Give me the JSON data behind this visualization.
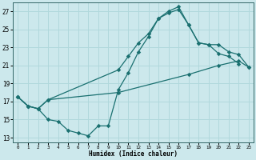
{
  "xlabel": "Humidex (Indice chaleur)",
  "bg_color": "#cce8ec",
  "line_color": "#1a7070",
  "grid_color": "#b0d8dc",
  "xlim": [
    -0.5,
    23.5
  ],
  "ylim": [
    12.5,
    28.0
  ],
  "yticks": [
    13,
    15,
    17,
    19,
    21,
    23,
    25,
    27
  ],
  "xticks": [
    0,
    1,
    2,
    3,
    4,
    5,
    6,
    7,
    8,
    9,
    10,
    11,
    12,
    13,
    14,
    15,
    16,
    17,
    18,
    19,
    20,
    21,
    22,
    23
  ],
  "lineA_x": [
    0,
    1,
    2,
    3,
    4,
    5,
    6,
    7,
    8,
    9,
    10,
    11,
    12,
    13,
    14,
    15,
    16,
    17,
    18,
    19,
    20,
    21,
    22
  ],
  "lineA_y": [
    17.5,
    16.5,
    16.2,
    15.0,
    14.8,
    13.8,
    13.5,
    13.2,
    14.3,
    14.3,
    18.3,
    20.2,
    22.5,
    24.2,
    26.2,
    27.0,
    27.5,
    25.5,
    23.5,
    23.3,
    22.3,
    22.0,
    21.2
  ],
  "lineB_x": [
    0,
    1,
    2,
    3,
    10,
    11,
    12,
    13,
    14,
    15,
    16,
    17,
    18,
    19,
    20,
    21,
    22,
    23
  ],
  "lineB_y": [
    17.5,
    16.5,
    16.2,
    17.2,
    20.5,
    22.0,
    23.5,
    24.5,
    26.2,
    26.8,
    27.2,
    25.5,
    23.5,
    23.3,
    23.3,
    22.5,
    22.2,
    20.8
  ],
  "lineC_x": [
    0,
    1,
    2,
    3,
    10,
    17,
    20,
    22,
    23
  ],
  "lineC_y": [
    17.5,
    16.5,
    16.2,
    17.2,
    18.0,
    20.0,
    21.0,
    21.5,
    20.8
  ]
}
